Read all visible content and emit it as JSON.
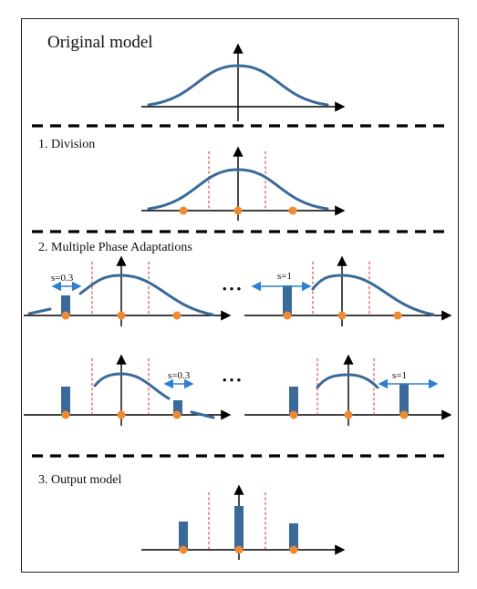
{
  "colors": {
    "curve": "#3a6a9a",
    "bar": "#3a6a9a",
    "dot": "#f08a30",
    "divider": "#e03a3a",
    "shift_arrow": "#2f7fd0",
    "axis": "#000000"
  },
  "sections": {
    "original": {
      "title": "Original model"
    },
    "division": {
      "title": "1. Division"
    },
    "adaptations": {
      "title": "2. Multiple Phase Adaptations",
      "ellipsis": "• • •",
      "labels": {
        "s_03": "s=0.3",
        "s_1": "s=1"
      }
    },
    "output": {
      "title": "3. Output model"
    }
  }
}
